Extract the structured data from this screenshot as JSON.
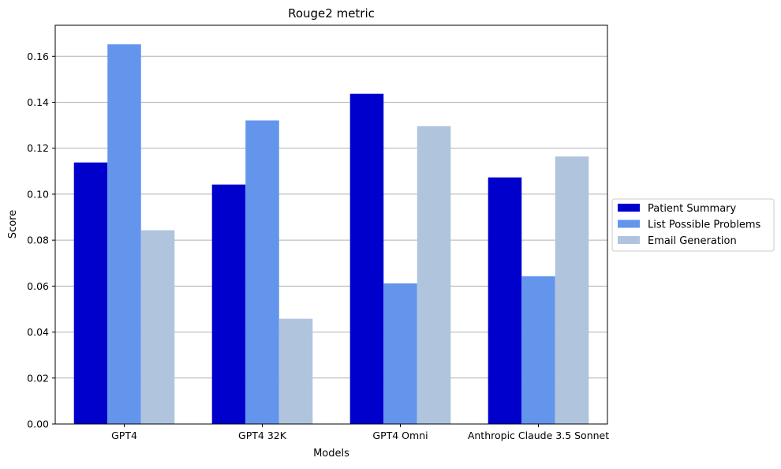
{
  "chart_data": {
    "type": "bar",
    "title": "Rouge2 metric",
    "xlabel": "Models",
    "ylabel": "Score",
    "categories": [
      "GPT4",
      "GPT4 32K",
      "GPT4 Omni",
      "Anthropic Claude 3.5 Sonnet"
    ],
    "series": [
      {
        "name": "Patient Summary",
        "color": "#0000CD",
        "values": [
          0.1138,
          0.1042,
          0.1437,
          0.1073
        ]
      },
      {
        "name": "List Possible Problems",
        "color": "#6495ED",
        "values": [
          0.1652,
          0.1321,
          0.0612,
          0.0643
        ]
      },
      {
        "name": "Email Generation",
        "color": "#B0C4DE",
        "values": [
          0.0843,
          0.0458,
          0.1296,
          0.1164
        ]
      }
    ],
    "ylim": [
      0,
      0.1735
    ],
    "yticks": [
      "0.00",
      "0.02",
      "0.04",
      "0.06",
      "0.08",
      "0.10",
      "0.12",
      "0.14",
      "0.16"
    ],
    "grid": "y",
    "legend_position": "center-right (outside plot)"
  }
}
